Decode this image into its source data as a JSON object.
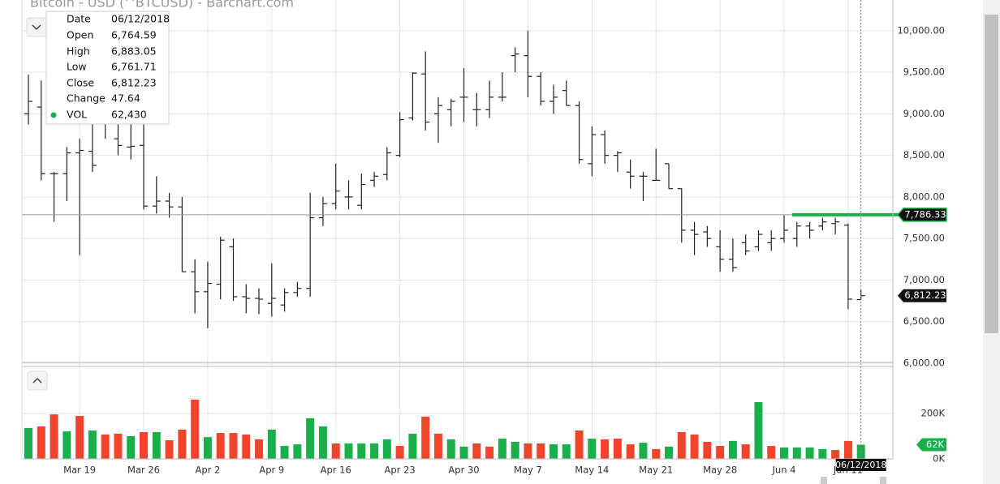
{
  "chart_data": {
    "type": "ohlc",
    "title": "Bitcoin - USD (^BTCUSD) - Barchart.com",
    "color": "#222222",
    "categories": [
      null,
      null,
      null,
      null,
      "Mar 19",
      null,
      null,
      null,
      null,
      "Mar 26",
      null,
      null,
      null,
      null,
      "Apr 2",
      null,
      null,
      null,
      null,
      "Apr 9",
      null,
      null,
      null,
      null,
      "Apr 16",
      null,
      null,
      null,
      null,
      "Apr 23",
      null,
      null,
      null,
      null,
      "Apr 30",
      null,
      null,
      null,
      null,
      "May 7",
      null,
      null,
      null,
      null,
      "May 14",
      null,
      null,
      null,
      null,
      "May 21",
      null,
      null,
      null,
      null,
      "May 28",
      null,
      null,
      null,
      null,
      "Jun 4",
      null,
      null,
      null,
      null,
      "Jun 11",
      null
    ],
    "open": [
      9000,
      9080,
      8280,
      8280,
      8530,
      8550,
      8900,
      8700,
      8600,
      8620,
      7890,
      7950,
      7880,
      7100,
      6860,
      6950,
      7400,
      6800,
      6780,
      6720,
      6700,
      6850,
      6900,
      7750,
      7920,
      8000,
      7900,
      8200,
      8270,
      8500,
      8950,
      9480,
      9000,
      9050,
      9200,
      9050,
      9050,
      9200,
      9700,
      9700,
      9450,
      9150,
      9280,
      9100,
      8400,
      8750,
      8500,
      8300,
      8250,
      8200,
      8400,
      8100,
      7600,
      7580,
      7400,
      7250,
      7450,
      7400,
      7450,
      7500,
      7500,
      7650,
      7650,
      7680,
      7660,
      6764.59
    ],
    "high": [
      9470,
      9400,
      8300,
      8600,
      8700,
      8950,
      9100,
      9100,
      9050,
      8950,
      8250,
      8050,
      8000,
      7250,
      7220,
      7520,
      7500,
      6950,
      6900,
      7200,
      6900,
      6980,
      8050,
      8000,
      8400,
      8200,
      8280,
      8300,
      8600,
      9020,
      9500,
      9750,
      9200,
      9180,
      9550,
      9250,
      9400,
      9500,
      9800,
      10000,
      9500,
      9350,
      9400,
      9150,
      8850,
      8800,
      8550,
      8450,
      8300,
      8580,
      8400,
      8100,
      7700,
      7650,
      7600,
      7500,
      7550,
      7600,
      7600,
      7780,
      7700,
      7700,
      7750,
      7750,
      7680,
      6883.05
    ],
    "low": [
      8870,
      8200,
      7700,
      7950,
      7300,
      8300,
      8700,
      8500,
      8450,
      7850,
      7800,
      7750,
      7100,
      6600,
      6420,
      6770,
      6750,
      6600,
      6590,
      6560,
      6620,
      6800,
      6800,
      7650,
      7850,
      7850,
      7850,
      8120,
      8200,
      8480,
      8920,
      8800,
      8650,
      8850,
      8900,
      8850,
      8950,
      9150,
      9500,
      9200,
      9100,
      9000,
      9100,
      8400,
      8250,
      8400,
      8300,
      8100,
      7950,
      8200,
      8100,
      7450,
      7300,
      7400,
      7100,
      7100,
      7300,
      7350,
      7350,
      7450,
      7400,
      7500,
      7600,
      7550,
      6650,
      6761.71
    ],
    "close": [
      9150,
      8280,
      8280,
      8530,
      8560,
      8380,
      8900,
      8620,
      8610,
      7890,
      7950,
      7880,
      7100,
      6860,
      6960,
      7480,
      6800,
      6780,
      6770,
      6780,
      6850,
      6900,
      7750,
      7920,
      8070,
      8000,
      8150,
      8250,
      8530,
      8930,
      9490,
      8900,
      9100,
      9150,
      9200,
      9050,
      9200,
      9200,
      9720,
      9450,
      9150,
      9200,
      9100,
      8450,
      8750,
      8500,
      8530,
      8250,
      8250,
      8200,
      8100,
      7600,
      7550,
      7500,
      7250,
      7150,
      7350,
      7550,
      7500,
      7600,
      7650,
      7600,
      7700,
      7700,
      6770,
      6812.23
    ],
    "ylim": [
      6000,
      10330
    ],
    "yticks": [
      {
        "value": 6000,
        "label": "6,000.00"
      },
      {
        "value": 6500,
        "label": "6,500.00"
      },
      {
        "value": 7000,
        "label": "7,000.00"
      },
      {
        "value": 7500,
        "label": "7,500.00"
      },
      {
        "value": 8000,
        "label": "8,000.00"
      },
      {
        "value": 8500,
        "label": "8,500.00"
      },
      {
        "value": 9000,
        "label": "9,000.00"
      },
      {
        "value": 9500,
        "label": "9,500.00"
      },
      {
        "value": 10000,
        "label": "10,000.00"
      }
    ],
    "grid": true,
    "volume": {
      "values": [
        136000,
        143000,
        196000,
        121000,
        189000,
        125000,
        107000,
        111000,
        100000,
        118000,
        118000,
        82000,
        129000,
        261000,
        96000,
        114000,
        114000,
        107000,
        86000,
        129000,
        57000,
        64000,
        179000,
        143000,
        68000,
        68000,
        68000,
        68000,
        86000,
        57000,
        111000,
        186000,
        111000,
        86000,
        54000,
        68000,
        54000,
        89000,
        75000,
        68000,
        68000,
        64000,
        64000,
        125000,
        89000,
        86000,
        89000,
        64000,
        71000,
        43000,
        54000,
        118000,
        107000,
        75000,
        57000,
        79000,
        64000,
        250000,
        57000,
        50000,
        50000,
        50000,
        43000,
        39000,
        79000,
        62430
      ],
      "colors": [
        "#19b04b",
        "#f2432c",
        "#f2432c",
        "#19b04b",
        "#f2432c",
        "#19b04b",
        "#f2432c",
        "#f2432c",
        "#19b04b",
        "#f2432c",
        "#19b04b",
        "#f2432c",
        "#f2432c",
        "#f2432c",
        "#19b04b",
        "#f2432c",
        "#f2432c",
        "#f2432c",
        "#f2432c",
        "#19b04b",
        "#19b04b",
        "#19b04b",
        "#19b04b",
        "#19b04b",
        "#f2432c",
        "#19b04b",
        "#19b04b",
        "#19b04b",
        "#19b04b",
        "#f2432c",
        "#19b04b",
        "#f2432c",
        "#f2432c",
        "#19b04b",
        "#19b04b",
        "#f2432c",
        "#f2432c",
        "#19b04b",
        "#19b04b",
        "#f2432c",
        "#f2432c",
        "#19b04b",
        "#19b04b",
        "#f2432c",
        "#19b04b",
        "#f2432c",
        "#f2432c",
        "#f2432c",
        "#19b04b",
        "#f2432c",
        "#19b04b",
        "#f2432c",
        "#f2432c",
        "#f2432c",
        "#f2432c",
        "#19b04b",
        "#f2432c",
        "#19b04b",
        "#f2432c",
        "#19b04b",
        "#19b04b",
        "#19b04b",
        "#19b04b",
        "#f2432c",
        "#f2432c",
        "#19b04b"
      ],
      "ylim": [
        0,
        400000
      ],
      "yticks": [
        {
          "value": 0,
          "label": "0K"
        },
        {
          "value": 200000,
          "label": "200K"
        }
      ],
      "last": {
        "value": 62430,
        "label": "62K",
        "color": "#19b04b"
      }
    },
    "reference_line": {
      "value": 7786.33,
      "label": "7,786.33",
      "color": "#19b04b"
    },
    "last_price": {
      "value": 6812.23,
      "label": "6,812.23"
    },
    "crosshair_date": "06/12/2018",
    "tooltip": [
      {
        "label": "Date",
        "text": "06/12/2018"
      },
      {
        "label": "Open",
        "text": "6,764.59"
      },
      {
        "label": "High",
        "text": "6,883.05"
      },
      {
        "label": "Low",
        "text": "6,761.71"
      },
      {
        "label": "Close",
        "text": "6,812.23"
      },
      {
        "label": "Change",
        "text": "47.64"
      },
      {
        "label": "VOL",
        "text": "62,430"
      }
    ]
  }
}
